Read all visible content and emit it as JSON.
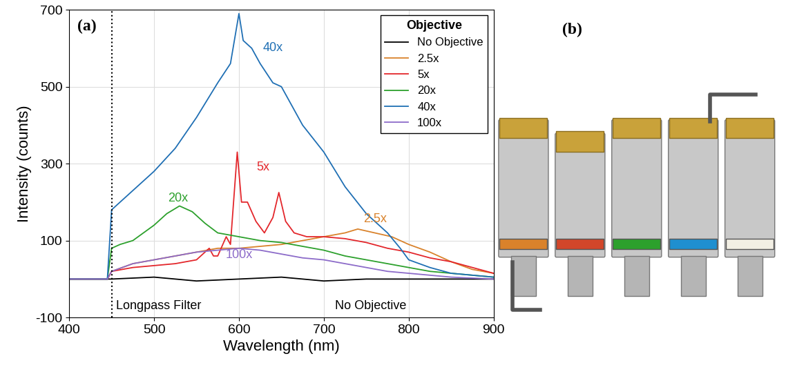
{
  "chart_data": {
    "type": "line",
    "panel_labels": [
      "(a)",
      "(b)"
    ],
    "xlabel": "Wavelength (nm)",
    "ylabel": "Intensity (counts)",
    "xlim": [
      400,
      900
    ],
    "xticks": [
      400,
      500,
      600,
      700,
      800,
      900
    ],
    "ylim": [
      -100,
      700
    ],
    "yticks": [
      -100,
      100,
      300,
      500,
      700
    ],
    "grid": true,
    "legend": "upper right",
    "legend_title": "Objective",
    "reference_lines": [
      {
        "x": 450,
        "line_style": "dotted",
        "color": "#000000"
      }
    ],
    "annotations": [
      {
        "text": "40x",
        "x": 640,
        "y": 600,
        "color": "#1f6fb4"
      },
      {
        "text": "20x",
        "x": 528,
        "y": 210,
        "color": "#2ca02c"
      },
      {
        "text": "5x",
        "x": 628,
        "y": 290,
        "color": "#e3262b"
      },
      {
        "text": "2.5x",
        "x": 760,
        "y": 155,
        "color": "#d9822b"
      },
      {
        "text": "100x",
        "x": 600,
        "y": 62,
        "color": "#8c6bc9"
      },
      {
        "text": "Longpass Filter",
        "x": 505,
        "y": -70,
        "color": "#000000"
      },
      {
        "text": "No Objective",
        "x": 755,
        "y": -70,
        "color": "#000000"
      }
    ],
    "series": [
      {
        "name": "No Objective",
        "color": "#000000",
        "x": [
          400,
          450,
          500,
          550,
          600,
          650,
          700,
          750,
          800,
          850,
          900
        ],
        "values": [
          0,
          0,
          5,
          -5,
          0,
          5,
          -5,
          0,
          0,
          0,
          0
        ]
      },
      {
        "name": "2.5x",
        "color": "#d9822b",
        "x": [
          400,
          445,
          450,
          475,
          500,
          525,
          550,
          575,
          600,
          625,
          650,
          675,
          700,
          725,
          740,
          760,
          780,
          800,
          825,
          850,
          875,
          900
        ],
        "values": [
          0,
          0,
          20,
          40,
          50,
          60,
          70,
          80,
          80,
          85,
          90,
          100,
          110,
          120,
          130,
          120,
          110,
          90,
          70,
          45,
          25,
          15
        ]
      },
      {
        "name": "5x",
        "color": "#e3262b",
        "x": [
          400,
          445,
          450,
          475,
          500,
          525,
          550,
          565,
          570,
          575,
          585,
          590,
          598,
          603,
          610,
          620,
          630,
          640,
          647,
          655,
          665,
          680,
          700,
          725,
          750,
          775,
          800,
          825,
          850,
          875,
          900
        ],
        "values": [
          0,
          0,
          20,
          30,
          35,
          40,
          50,
          80,
          60,
          60,
          110,
          90,
          330,
          200,
          200,
          150,
          120,
          160,
          225,
          150,
          120,
          110,
          110,
          105,
          95,
          80,
          70,
          55,
          45,
          30,
          15
        ]
      },
      {
        "name": "20x",
        "color": "#2ca02c",
        "x": [
          400,
          445,
          450,
          460,
          475,
          500,
          515,
          530,
          545,
          560,
          575,
          600,
          625,
          650,
          675,
          700,
          725,
          750,
          775,
          800,
          825,
          850,
          875,
          900
        ],
        "values": [
          0,
          0,
          80,
          90,
          100,
          140,
          170,
          190,
          175,
          145,
          120,
          110,
          100,
          95,
          85,
          75,
          60,
          50,
          40,
          30,
          20,
          15,
          10,
          5
        ]
      },
      {
        "name": "40x",
        "color": "#1f6fb4",
        "x": [
          400,
          445,
          450,
          460,
          475,
          500,
          525,
          550,
          575,
          590,
          600,
          605,
          615,
          625,
          640,
          650,
          660,
          675,
          700,
          725,
          750,
          775,
          790,
          800,
          825,
          850,
          875,
          900
        ],
        "values": [
          0,
          0,
          180,
          200,
          230,
          280,
          340,
          420,
          510,
          560,
          690,
          620,
          600,
          560,
          510,
          500,
          460,
          400,
          330,
          240,
          170,
          120,
          80,
          50,
          30,
          15,
          10,
          5
        ]
      },
      {
        "name": "100x",
        "color": "#8c6bc9",
        "x": [
          400,
          445,
          450,
          475,
          500,
          525,
          550,
          575,
          600,
          625,
          650,
          675,
          700,
          725,
          750,
          775,
          800,
          825,
          850,
          900
        ],
        "values": [
          0,
          0,
          20,
          40,
          50,
          60,
          70,
          75,
          80,
          75,
          65,
          55,
          50,
          40,
          30,
          20,
          15,
          10,
          5,
          0
        ]
      }
    ]
  }
}
